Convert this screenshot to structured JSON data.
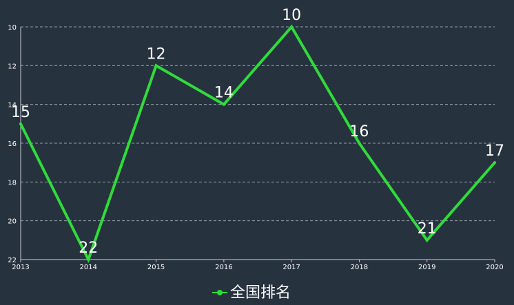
{
  "colors": {
    "background": "#27323f",
    "series": "#2fdc3a",
    "grid": "#9aa3ad",
    "axis": "#c9ced4",
    "text": "#ffffff"
  },
  "chart_data": {
    "type": "line",
    "x": [
      "2013",
      "2014",
      "2015",
      "2016",
      "2017",
      "2018",
      "2019",
      "2020"
    ],
    "series": [
      {
        "name": "全国排名",
        "values": [
          15,
          22,
          12,
          14,
          10,
          16,
          21,
          17
        ]
      }
    ],
    "yticks": [
      10,
      12,
      14,
      16,
      18,
      20,
      22
    ],
    "ylim": [
      10,
      22
    ],
    "y_inverted": true,
    "grid": true,
    "grid_style": "dashed",
    "legend_position": "bottom-center",
    "data_labels": true
  }
}
